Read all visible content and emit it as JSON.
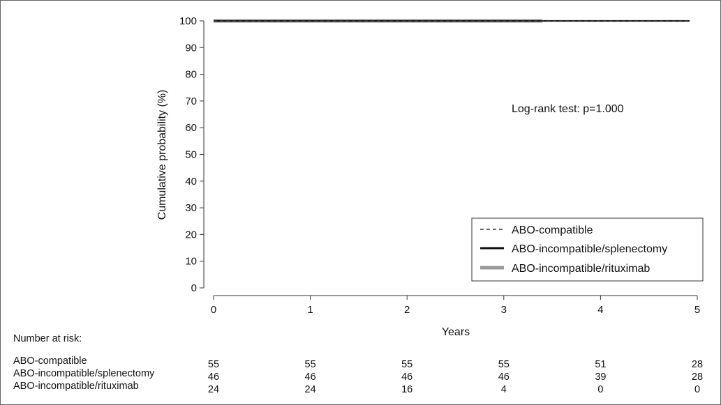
{
  "chart_data": {
    "type": "line",
    "ylabel": "Cumulative probability (%)",
    "xlabel": "Years",
    "xlim": [
      0,
      5
    ],
    "ylim": [
      0,
      100
    ],
    "x_ticks": [
      0,
      1,
      2,
      3,
      4,
      5
    ],
    "y_ticks": [
      0,
      10,
      20,
      30,
      40,
      50,
      60,
      70,
      80,
      90,
      100
    ],
    "grid": false,
    "legend_position": "bottom-right",
    "annotation": "Log-rank test: p=1.000",
    "series": [
      {
        "name": "ABO-compatible",
        "style": "dashed",
        "color": "#333333",
        "x": [
          0,
          4.92
        ],
        "y": [
          100,
          100
        ]
      },
      {
        "name": "ABO-incompatible/splenectomy",
        "style": "solid",
        "color": "#111111",
        "x": [
          0,
          4.92
        ],
        "y": [
          100,
          100
        ]
      },
      {
        "name": "ABO-incompatible/rituximab",
        "style": "solid-thick",
        "color": "#9a9a9a",
        "x": [
          0,
          3.4
        ],
        "y": [
          100,
          100
        ]
      }
    ]
  },
  "risk_table": {
    "title": "Number at risk:",
    "times": [
      0,
      1,
      2,
      3,
      4,
      5
    ],
    "rows": [
      {
        "name": "ABO-compatible",
        "values": [
          "55",
          "55",
          "55",
          "55",
          "51",
          "28"
        ]
      },
      {
        "name": "ABO-incompatible/splenectomy",
        "values": [
          "46",
          "46",
          "46",
          "46",
          "39",
          "28"
        ]
      },
      {
        "name": "ABO-incompatible/rituximab",
        "values": [
          "24",
          "24",
          "16",
          "4",
          "0",
          "0"
        ]
      }
    ]
  }
}
